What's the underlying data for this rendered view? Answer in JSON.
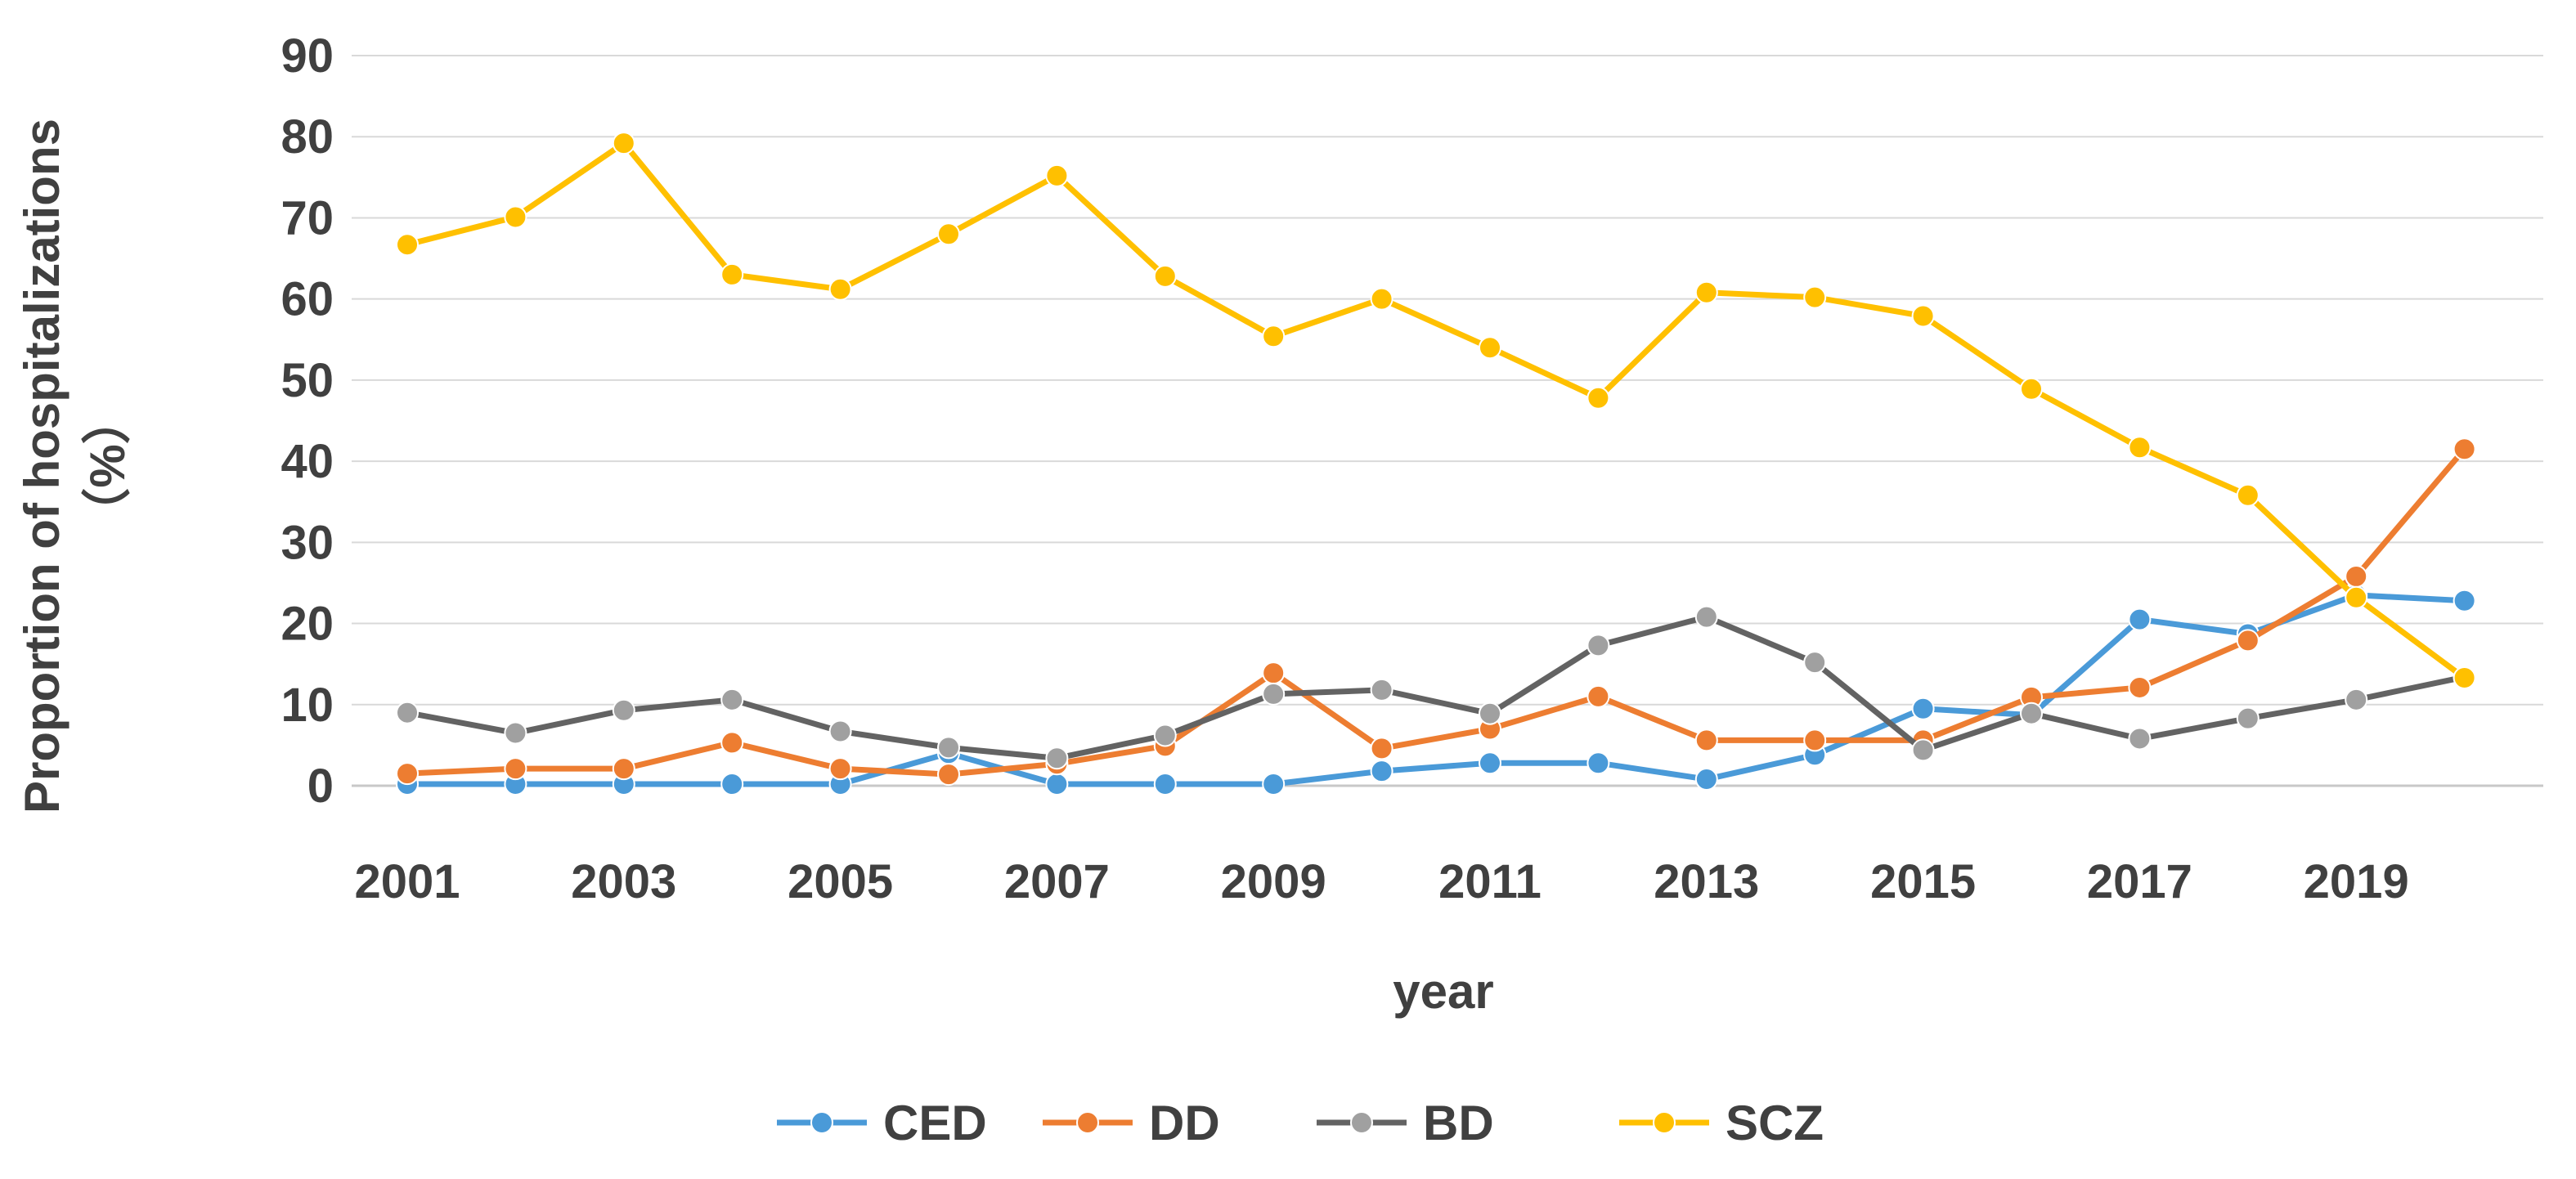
{
  "chart_data": {
    "type": "line",
    "title": "",
    "xlabel": "year",
    "ylabel_line1": "Proportion of hospitalizations",
    "ylabel_line2": "（%）",
    "ylim": [
      0,
      90
    ],
    "yticks": [
      0,
      10,
      20,
      30,
      40,
      50,
      60,
      70,
      80,
      90
    ],
    "x": [
      2001,
      2002,
      2003,
      2004,
      2005,
      2006,
      2007,
      2008,
      2009,
      2010,
      2011,
      2012,
      2013,
      2014,
      2015,
      2016,
      2017,
      2018,
      2019,
      2020
    ],
    "xtick_labels": [
      "2001",
      "2003",
      "2005",
      "2007",
      "2009",
      "2011",
      "2013",
      "2015",
      "2017",
      "2019"
    ],
    "grid": true,
    "legend_position": "bottom-center",
    "series": [
      {
        "name": "CED",
        "color": "#4a9ad8",
        "values": [
          0.2,
          0.2,
          0.2,
          0.2,
          0.2,
          4.0,
          0.2,
          0.2,
          0.2,
          1.8,
          2.8,
          2.8,
          0.8,
          3.8,
          9.5,
          8.7,
          20.5,
          18.7,
          23.5,
          22.8
        ]
      },
      {
        "name": "DD",
        "color": "#ed7d31",
        "values": [
          1.5,
          2.1,
          2.1,
          5.3,
          2.1,
          1.4,
          2.7,
          4.9,
          13.9,
          4.6,
          7.0,
          11.0,
          5.6,
          5.6,
          5.6,
          10.9,
          12.1,
          17.9,
          25.8,
          41.5
        ]
      },
      {
        "name": "BD",
        "color": "#a0a0a0",
        "lineColor": "#636363",
        "values": [
          9.0,
          6.5,
          9.3,
          10.6,
          6.7,
          4.7,
          3.4,
          6.2,
          11.3,
          11.8,
          8.9,
          17.3,
          20.8,
          15.2,
          4.4,
          8.9,
          5.8,
          8.3,
          10.6,
          13.4
        ]
      },
      {
        "name": "SCZ",
        "color": "#ffc000",
        "values": [
          66.7,
          70.1,
          79.2,
          63.0,
          61.2,
          68.0,
          75.2,
          62.8,
          55.4,
          60.0,
          54.0,
          47.8,
          60.8,
          60.2,
          57.9,
          48.9,
          41.7,
          35.8,
          23.2,
          13.3
        ]
      }
    ]
  }
}
